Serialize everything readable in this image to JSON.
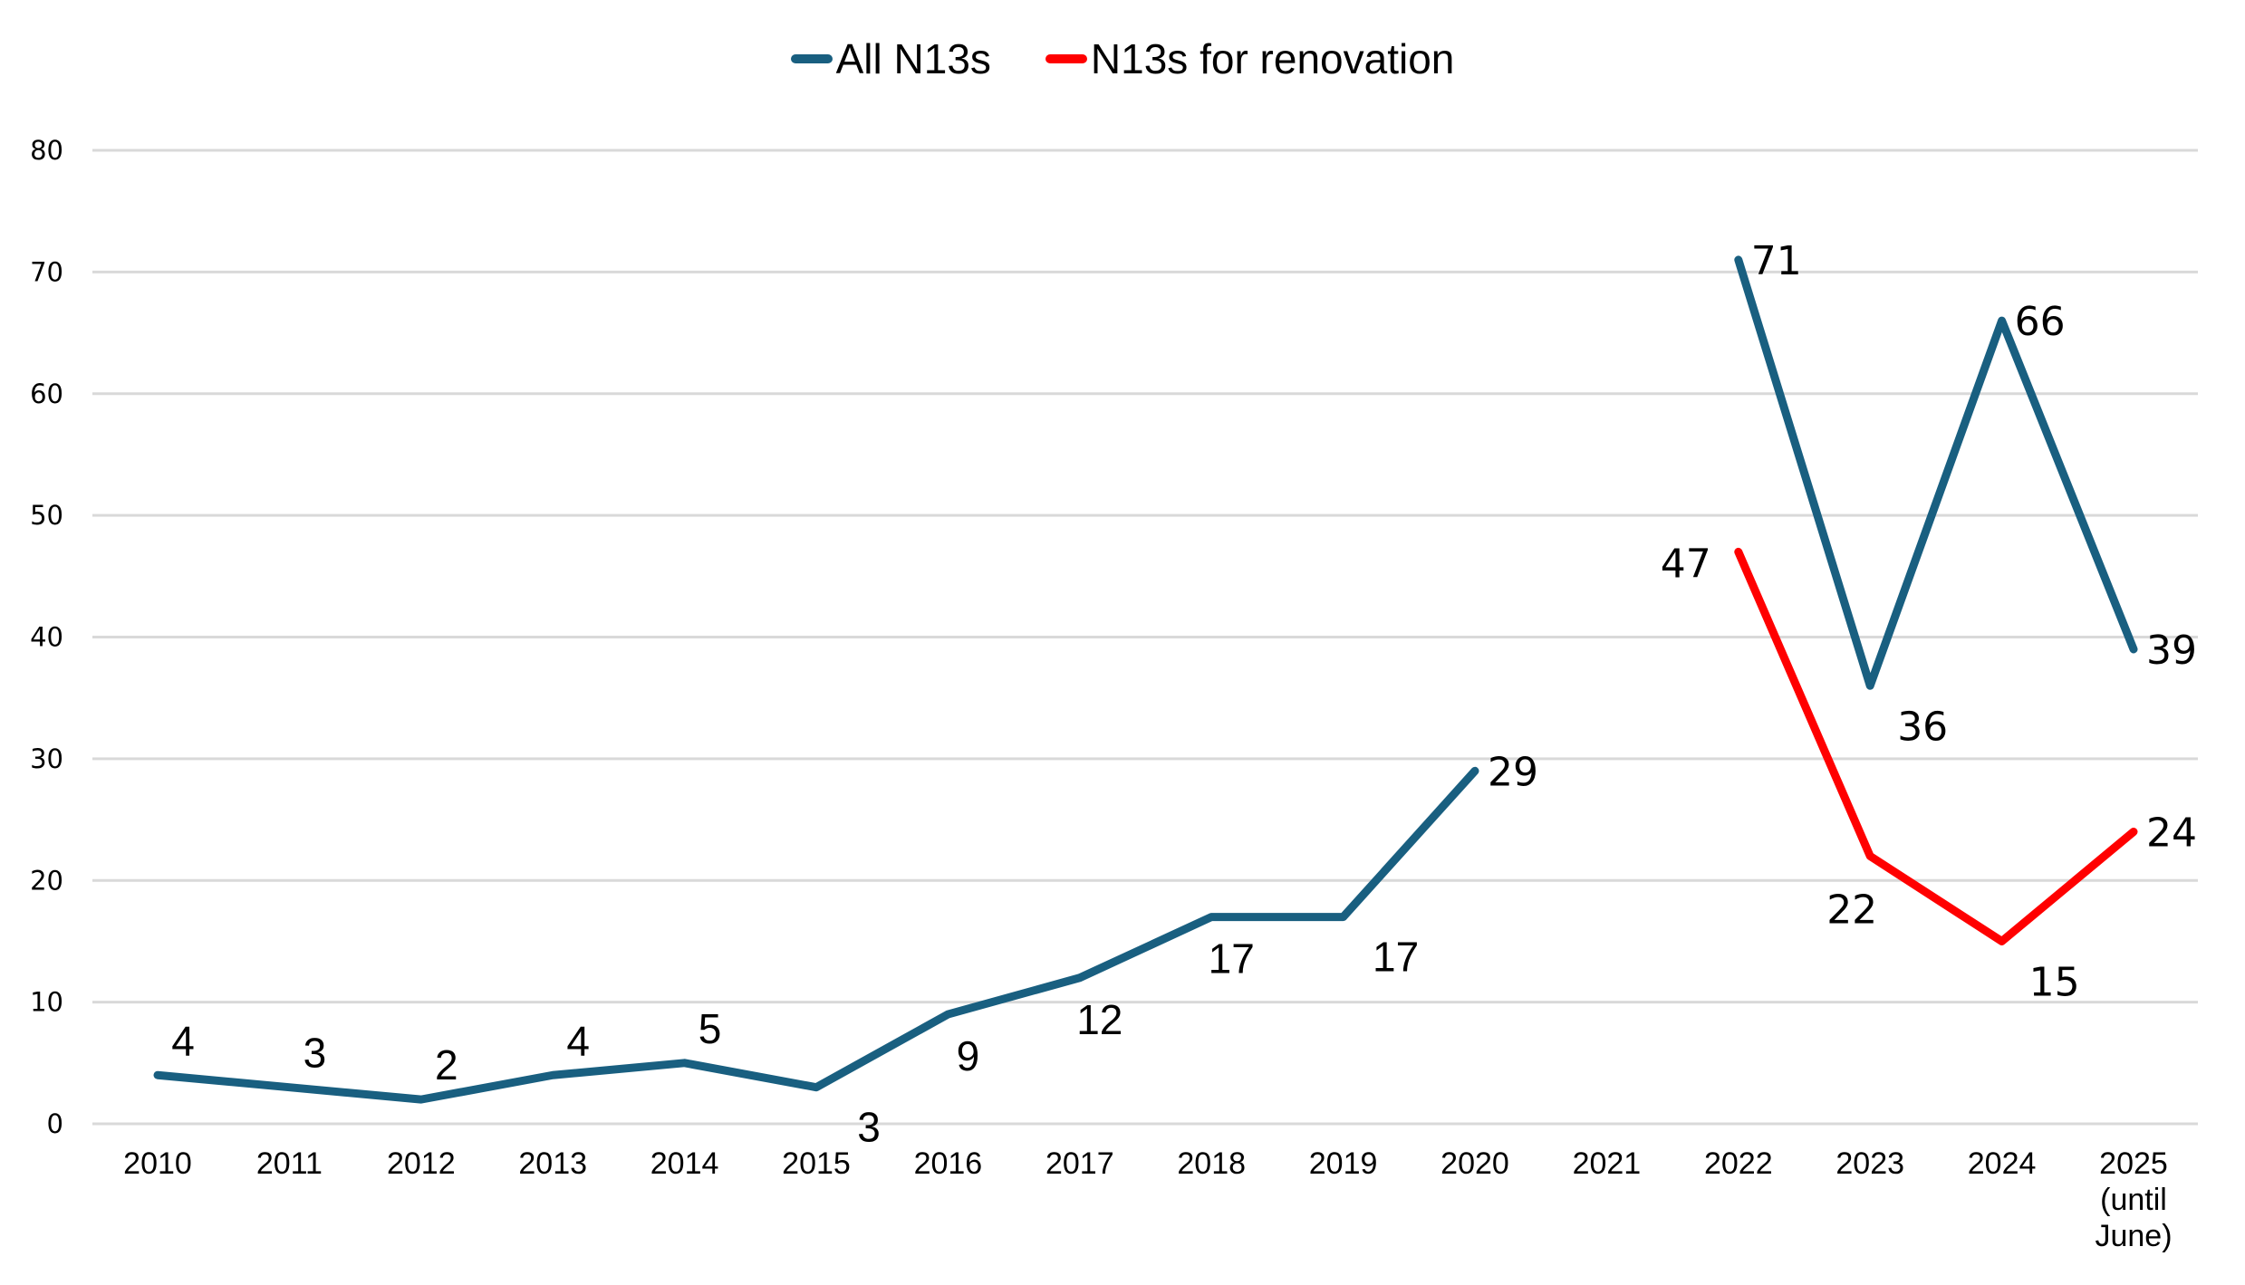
{
  "chart_data": {
    "type": "line",
    "title": "",
    "xlabel": "",
    "ylabel": "",
    "ylim": [
      0,
      80
    ],
    "yticks": [
      0,
      10,
      20,
      30,
      40,
      50,
      60,
      70,
      80
    ],
    "grid": true,
    "legend_position": "top-center",
    "categories": [
      "2010",
      "2011",
      "2012",
      "2013",
      "2014",
      "2015",
      "2016",
      "2017",
      "2018",
      "2019",
      "2020",
      "2021",
      "2022",
      "2023",
      "2024",
      "2025 (until June)"
    ],
    "category_lines": [
      [
        "2010"
      ],
      [
        "2011"
      ],
      [
        "2012"
      ],
      [
        "2013"
      ],
      [
        "2014"
      ],
      [
        "2015"
      ],
      [
        "2016"
      ],
      [
        "2017"
      ],
      [
        "2018"
      ],
      [
        "2019"
      ],
      [
        "2020"
      ],
      [
        "2021"
      ],
      [
        "2022"
      ],
      [
        "2023"
      ],
      [
        "2024"
      ],
      [
        "2025",
        "(until",
        "June)"
      ]
    ],
    "series": [
      {
        "name": "All N13s",
        "color": "#195f80",
        "values": [
          4,
          3,
          2,
          4,
          5,
          3,
          9,
          12,
          17,
          17,
          29,
          null,
          71,
          36,
          66,
          39
        ],
        "label_positions": [
          "above",
          "above",
          "above",
          "above",
          "above",
          "below-right",
          "below",
          "below",
          "below",
          "below-right",
          "right",
          null,
          "right",
          "below-right",
          "right",
          "right"
        ]
      },
      {
        "name": "N13s for renovation",
        "color": "#ff0000",
        "values": [
          null,
          null,
          null,
          null,
          null,
          null,
          null,
          null,
          null,
          null,
          null,
          null,
          47,
          22,
          15,
          24
        ],
        "label_positions": [
          null,
          null,
          null,
          null,
          null,
          null,
          null,
          null,
          null,
          null,
          null,
          null,
          "left",
          "below-left",
          "below-right",
          "right"
        ]
      }
    ]
  },
  "colors": {
    "grid": "#d9d9d9",
    "text": "#000000"
  }
}
